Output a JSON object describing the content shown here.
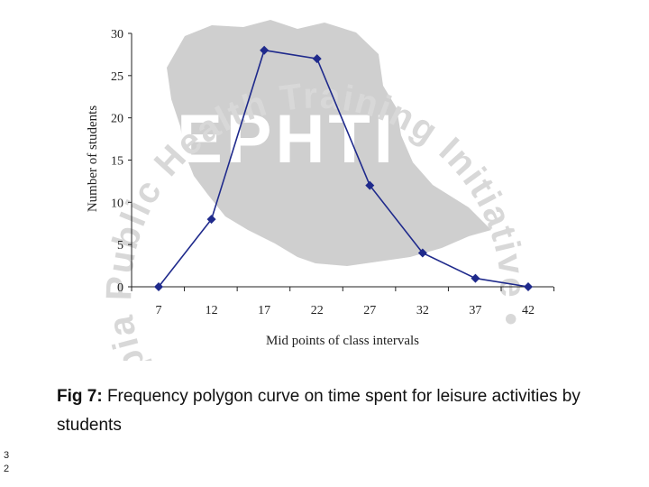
{
  "watermark": {
    "logo_text": "EPHTI",
    "ring_text": "Ethiopia Public Health Training Initiative •",
    "color": "#cfcfcf"
  },
  "chart_data": {
    "type": "line",
    "x": [
      7,
      12,
      17,
      22,
      27,
      32,
      37,
      42
    ],
    "series": [
      {
        "values": [
          0,
          8,
          28,
          27,
          12,
          4,
          1,
          0
        ],
        "color": "#1f2a8c",
        "marker": "diamond"
      }
    ],
    "xlabel": "Mid points of class intervals",
    "ylabel": "Number of students",
    "ylim": [
      0,
      30
    ],
    "yticks": [
      0,
      5,
      10,
      15,
      20,
      25,
      30
    ],
    "xticks": [
      7,
      12,
      17,
      22,
      27,
      32,
      37,
      42
    ],
    "grid": false
  },
  "caption": {
    "prefix": "Fig 7:",
    "text": " Frequency polygon curve on time spent for leisure activities by students"
  },
  "page_number": "32"
}
